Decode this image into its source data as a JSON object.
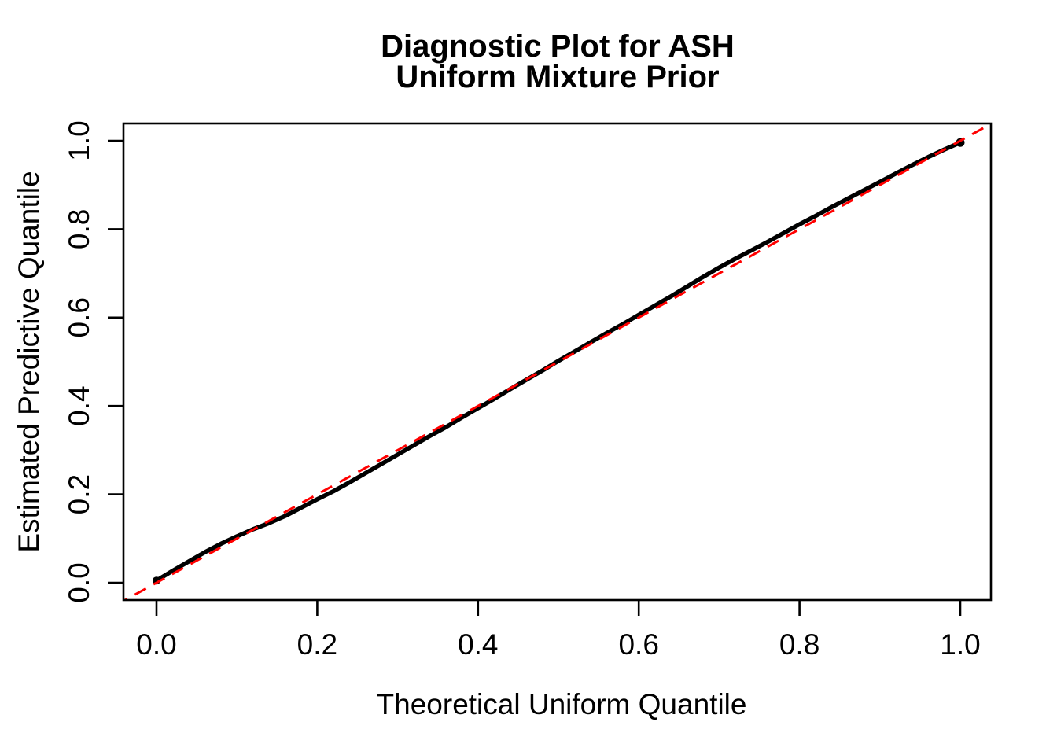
{
  "figure": {
    "background": "#FFFFFF",
    "axis_color": "#000000"
  },
  "chart_data": {
    "type": "scatter",
    "title_lines": [
      "Diagnostic Plot for ASH",
      "Uniform Mixture Prior"
    ],
    "xlabel": "Theoretical Uniform Quantile",
    "ylabel": "Estimated Predictive Quantile",
    "x_ticks": [
      0.0,
      0.2,
      0.4,
      0.6,
      0.8,
      1.0
    ],
    "y_ticks": [
      0.0,
      0.2,
      0.4,
      0.6,
      0.8,
      1.0
    ],
    "x_tick_labels": [
      "0.0",
      "0.2",
      "0.4",
      "0.6",
      "0.8",
      "1.0"
    ],
    "y_tick_labels": [
      "0.0",
      "0.2",
      "0.4",
      "0.6",
      "0.8",
      "1.0"
    ],
    "xlim": [
      -0.041,
      1.038
    ],
    "ylim": [
      -0.039,
      1.039
    ],
    "grid": false,
    "legend": null,
    "series": [
      {
        "name": "estimated-vs-theoretical-quantiles",
        "type": "points-dense-line",
        "color": "#000000",
        "marker": "filled-circle",
        "x": [
          0.0,
          0.02,
          0.04,
          0.06,
          0.08,
          0.1,
          0.12,
          0.14,
          0.16,
          0.18,
          0.2,
          0.22,
          0.24,
          0.26,
          0.28,
          0.3,
          0.32,
          0.34,
          0.36,
          0.38,
          0.4,
          0.42,
          0.44,
          0.46,
          0.48,
          0.5,
          0.52,
          0.54,
          0.56,
          0.58,
          0.6,
          0.62,
          0.64,
          0.66,
          0.68,
          0.7,
          0.72,
          0.74,
          0.76,
          0.78,
          0.8,
          0.82,
          0.84,
          0.86,
          0.88,
          0.9,
          0.92,
          0.94,
          0.96,
          0.98,
          0.99,
          1.0
        ],
        "y": [
          0.005,
          0.027,
          0.048,
          0.069,
          0.088,
          0.105,
          0.121,
          0.135,
          0.151,
          0.17,
          0.189,
          0.207,
          0.227,
          0.248,
          0.269,
          0.29,
          0.311,
          0.332,
          0.352,
          0.374,
          0.395,
          0.416,
          0.438,
          0.459,
          0.48,
          0.502,
          0.523,
          0.544,
          0.565,
          0.585,
          0.606,
          0.627,
          0.648,
          0.67,
          0.692,
          0.713,
          0.733,
          0.752,
          0.771,
          0.791,
          0.811,
          0.83,
          0.85,
          0.869,
          0.888,
          0.907,
          0.926,
          0.945,
          0.963,
          0.98,
          0.988,
          0.996
        ]
      }
    ],
    "reference_line": {
      "name": "y-equals-x-diagonal",
      "color": "#FF0000",
      "style": "dashed",
      "from": [
        -0.05,
        -0.05
      ],
      "to": [
        1.05,
        1.05
      ]
    }
  }
}
